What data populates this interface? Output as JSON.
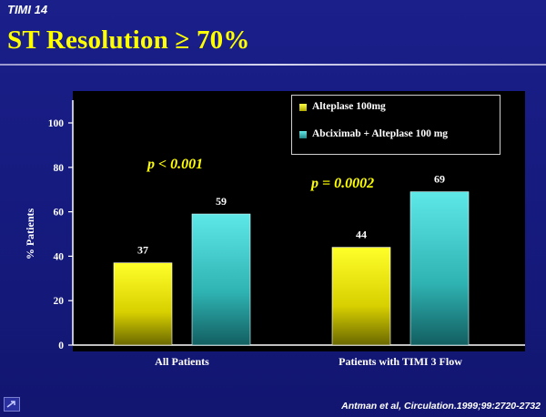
{
  "slide": {
    "kicker": "TIMI 14",
    "title": "ST Resolution ≥ 70%",
    "citation": "Antman et al, Circulation.1999;99:2720-2732"
  },
  "colors": {
    "background": "#161b80",
    "title": "#ffff00",
    "series1": "#f0f000",
    "series2": "#40d0d0"
  },
  "chart_data": {
    "type": "bar",
    "categories": [
      "All Patients",
      "Patients with TIMI 3 Flow"
    ],
    "series": [
      {
        "name": "Alteplase 100mg",
        "values": [
          37,
          44
        ]
      },
      {
        "name": "Abciximab + Alteplase 100 mg",
        "values": [
          59,
          69
        ]
      }
    ],
    "ylabel": "% Patients",
    "xlabel": "",
    "ylim": [
      0,
      100
    ],
    "yticks": [
      0,
      20,
      40,
      60,
      80,
      100
    ],
    "legend": "top-right",
    "grid": false,
    "annotations": [
      "p < 0.001",
      "p = 0.0002"
    ]
  }
}
